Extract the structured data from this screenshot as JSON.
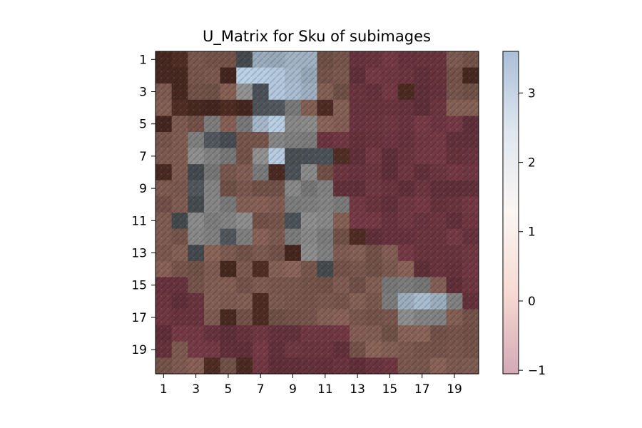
{
  "chart_data": {
    "type": "heatmap",
    "title": "U_Matrix for Sku of subimages",
    "xlabel": "",
    "ylabel": "",
    "rows": 20,
    "cols": 20,
    "xlim": [
      1,
      20
    ],
    "ylim": [
      1,
      20
    ],
    "x_ticks": [
      "1",
      "3",
      "5",
      "7",
      "9",
      "11",
      "13",
      "15",
      "17",
      "19"
    ],
    "y_ticks": [
      "1",
      "3",
      "5",
      "7",
      "9",
      "11",
      "13",
      "15",
      "17",
      "19"
    ],
    "colorbar": {
      "range": [
        -1.05,
        3.6
      ],
      "ticks": [
        "−1",
        "0",
        "1",
        "2",
        "3"
      ],
      "tick_values": [
        -1,
        0,
        1,
        2,
        3
      ],
      "colormap": [
        "#d3a9b6",
        "#f6dad2",
        "#fbf6f3",
        "#dfe7ef",
        "#abbfd8"
      ]
    },
    "tile_palette": {
      "dark": "#4a2a22",
      "brown": "#7d5a50",
      "mauve": "#6b3540",
      "grey": "#848484",
      "slate": "#4a5055",
      "blue": "#a9bdd0"
    },
    "grid_codes": [
      "DDBBBSUUUUBBMMMMMMBB",
      "DDBBDUUUUUBBMMMMMMBD",
      "BDBBBGSUUUBBMMMDMMBB",
      "BDDDDDSSGBDBMMMMMMBB",
      "DBBGBGUUGGBBMMMMMMMM",
      "BBGSSBBGGGMMMMMMMMMM",
      "BBGGGBGUSSSDMMMMMMMM",
      "DBSGBBGDSGBMMMMMMMMM",
      "BBSGBBBBGGGMMMMMMMMM",
      "BBSGGBBBGGGGMMMMMMMM",
      "BSGGGGBBSGGBMMMMMMMM",
      "BBGGSGBBGGGBDMMMMMMM",
      "BBSBBBBBDGGBBBBMMMMM",
      "BBBBDBDBBBSBBBBBMMMM",
      "MMBBBBBBBBBBBBGGGBMM",
      "MMMBBBDBBBBBBBGUUUGM",
      "MMMBDBDBBBBBBBBGGGBB",
      "MMMMMMMMMMMMBBBBBBBB",
      "MBMMMMMMMMMMBBBBBBBB",
      "BBBDBDMMMMMMMMMBBBBB"
    ]
  }
}
